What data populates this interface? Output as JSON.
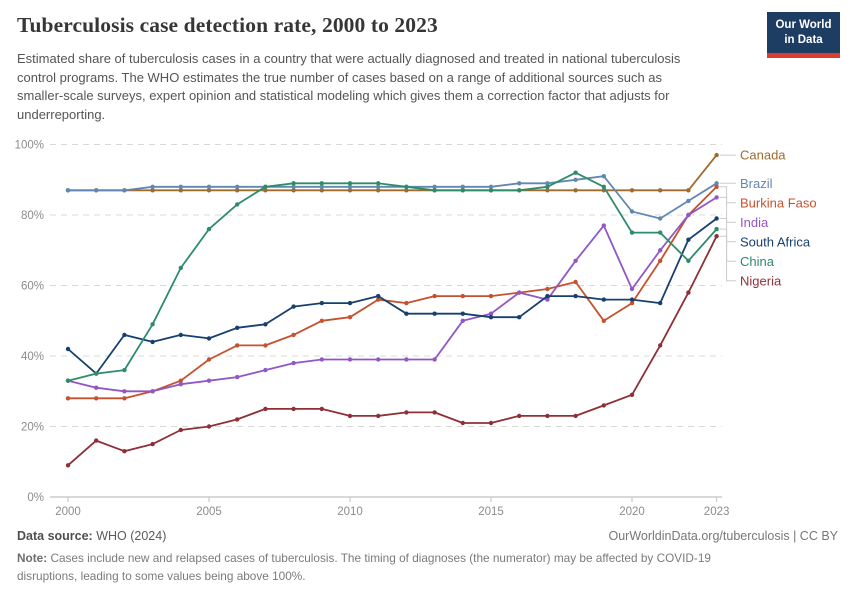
{
  "header": {
    "title": "Tuberculosis case detection rate, 2000 to 2023",
    "subtitle": "Estimated share of tuberculosis cases in a country that were actually diagnosed and treated in national tuberculosis control programs. The WHO estimates the true number of cases based on a range of additional sources such as smaller-scale surveys, expert opinion and statistical modeling which gives them a correction factor that adjusts for underreporting.",
    "logo_line1": "Our World",
    "logo_line2": "in Data",
    "logo_bg_color": "#1d3d63",
    "logo_stripe_color": "#dc3b2e"
  },
  "footer": {
    "source_label": "Data source:",
    "source_value": "WHO (2024)",
    "link": "OurWorldinData.org/tuberculosis | CC BY",
    "note_label": "Note:",
    "note_text": "Cases include new and relapsed cases of tuberculosis. The timing of diagnoses (the numerator) may be affected by COVID-19 disruptions, leading to some values being above 100%."
  },
  "chart_data": {
    "type": "line",
    "title": "Tuberculosis case detection rate, 2000 to 2023",
    "xlabel": "",
    "ylabel": "",
    "ylim": [
      0,
      100
    ],
    "yticks": [
      0,
      20,
      40,
      60,
      80,
      100
    ],
    "ytick_suffix": "%",
    "xticks": [
      2000,
      2005,
      2010,
      2015,
      2020,
      2023
    ],
    "grid": "dashed-horizontal",
    "legend_position": "right",
    "grid_color": "#d8d8d8",
    "axis_color": "#c2c2c2",
    "x": [
      2000,
      2001,
      2002,
      2003,
      2004,
      2005,
      2006,
      2007,
      2008,
      2009,
      2010,
      2011,
      2012,
      2013,
      2014,
      2015,
      2016,
      2017,
      2018,
      2019,
      2020,
      2021,
      2022,
      2023
    ],
    "series": [
      {
        "name": "Canada",
        "color": "#A06B2E",
        "values": [
          87,
          87,
          87,
          87,
          87,
          87,
          87,
          87,
          87,
          87,
          87,
          87,
          87,
          87,
          87,
          87,
          87,
          87,
          87,
          87,
          87,
          87,
          87,
          97
        ]
      },
      {
        "name": "Brazil",
        "color": "#6287B0",
        "values": [
          87,
          87,
          87,
          88,
          88,
          88,
          88,
          88,
          88,
          88,
          88,
          88,
          88,
          88,
          88,
          88,
          89,
          89,
          90,
          91,
          81,
          79,
          84,
          89
        ]
      },
      {
        "name": "Burkina Faso",
        "color": "#C4522E",
        "values": [
          28,
          28,
          28,
          30,
          33,
          39,
          43,
          43,
          46,
          50,
          51,
          56,
          55,
          57,
          57,
          57,
          58,
          59,
          61,
          50,
          55,
          67,
          80,
          88
        ]
      },
      {
        "name": "India",
        "color": "#9157C5",
        "values": [
          33,
          31,
          30,
          30,
          32,
          33,
          34,
          36,
          38,
          39,
          39,
          39,
          39,
          39,
          50,
          52,
          58,
          56,
          67,
          77,
          59,
          70,
          80,
          85
        ]
      },
      {
        "name": "South Africa",
        "color": "#17406F",
        "values": [
          42,
          35,
          46,
          44,
          46,
          45,
          48,
          49,
          54,
          55,
          55,
          57,
          52,
          52,
          52,
          51,
          51,
          57,
          57,
          56,
          56,
          55,
          73,
          79
        ]
      },
      {
        "name": "China",
        "color": "#2E8C6A",
        "values": [
          33,
          35,
          36,
          49,
          65,
          76,
          83,
          88,
          89,
          89,
          89,
          89,
          88,
          87,
          87,
          87,
          87,
          88,
          92,
          88,
          75,
          75,
          67,
          76
        ]
      },
      {
        "name": "Nigeria",
        "color": "#8E3038",
        "values": [
          9,
          16,
          13,
          15,
          19,
          20,
          22,
          25,
          25,
          25,
          23,
          23,
          24,
          24,
          21,
          21,
          23,
          23,
          23,
          26,
          29,
          43,
          58,
          74
        ]
      }
    ]
  }
}
